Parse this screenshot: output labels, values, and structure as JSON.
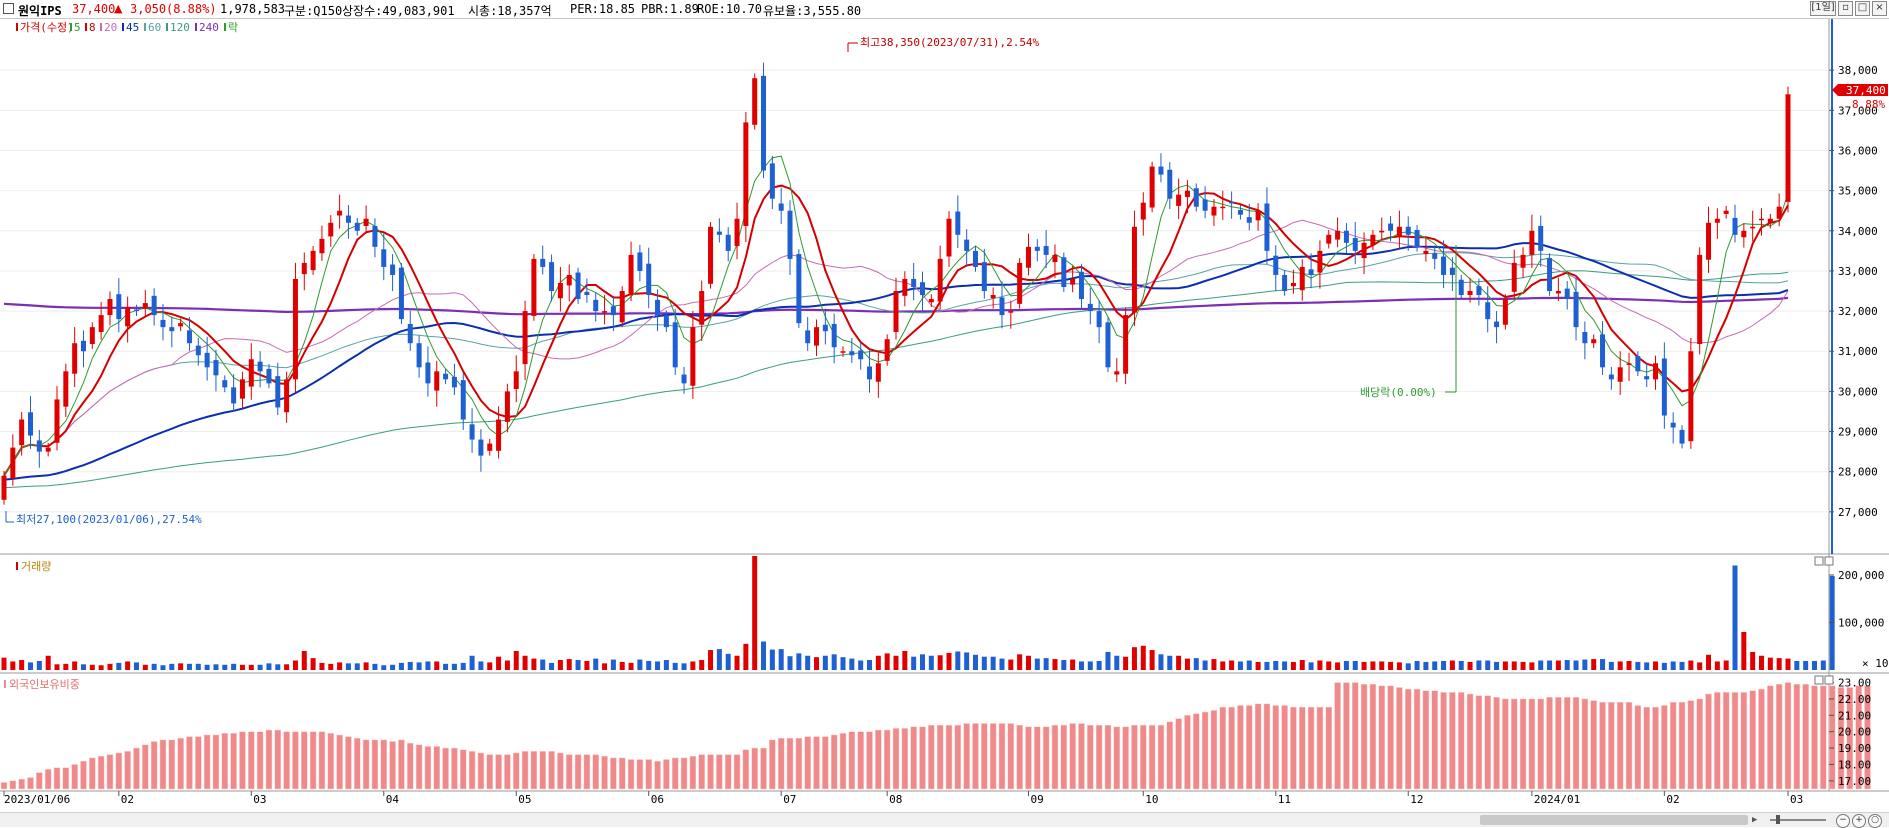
{
  "header": {
    "stock_name": "원익IPS",
    "price": "37,400",
    "change_arrow": "▲",
    "change": "3,050",
    "change_pct": "(8.88%)",
    "volume": "1,978,583",
    "market": "구분:Q150",
    "listed_shares": "상장수:49,083,901",
    "market_cap": "시총:18,357억",
    "per": "PER:18.85",
    "pbr": "PBR:1.89",
    "roe": "ROE:10.70",
    "retention": "유보율:3,555.80",
    "period": "[1일]"
  },
  "colors": {
    "up": "#e00000",
    "down": "#1e5fd1",
    "ma5": "#2e9b2e",
    "ma8": "#d40000",
    "ma20": "#c86bb5",
    "ma45": "#0b2fb0",
    "ma60": "#5aa2a4",
    "ma120": "#3a9d7f",
    "ma240": "#7b2fb5",
    "foreign": "#f08a8a"
  },
  "price_panel": {
    "legend": [
      {
        "label": "가격(수정)",
        "color": "#d40000"
      },
      {
        "label": "5",
        "color": "#2e9b2e"
      },
      {
        "label": "8",
        "color": "#d40000"
      },
      {
        "label": "20",
        "color": "#c86bb5"
      },
      {
        "label": "45",
        "color": "#0b2fb0"
      },
      {
        "label": "60",
        "color": "#5aa2a4"
      },
      {
        "label": "120",
        "color": "#3a9d7f"
      },
      {
        "label": "240",
        "color": "#7b2fb5"
      },
      {
        "label": "락",
        "color": "#2e9b2e"
      }
    ],
    "high_annotation": "최고38,350(2023/07/31),2.54%",
    "low_annotation": "최저27,100(2023/01/06),27.54%",
    "dividend_annotation": "배당락(0.00%)",
    "current_price_tag": "37,400",
    "current_pct_tag": "8.88%"
  },
  "volume_panel": {
    "legend": "거래량",
    "unit_label": "× 10"
  },
  "foreign_panel": {
    "legend": "외국인보유비중"
  },
  "chart_data": [
    {
      "type": "candlestick",
      "title": "원익IPS",
      "x": [
        "2023/01/06",
        "02",
        "03",
        "04",
        "05",
        "06",
        "07",
        "08",
        "09",
        "10",
        "11",
        "12",
        "2024/01",
        "02",
        "03"
      ],
      "y_ticks": [
        27000,
        28000,
        29000,
        30000,
        31000,
        32000,
        33000,
        34000,
        35000,
        36000,
        37000,
        38000
      ],
      "y_tick_labels": [
        "27,000",
        "28,000",
        "29,000",
        "30,000",
        "31,000",
        "32,000",
        "33,000",
        "34,000",
        "35,000",
        "36,000",
        "37,000",
        "38,000"
      ],
      "ylim": [
        26000,
        39200
      ],
      "closes": [
        27900,
        28600,
        29300,
        28900,
        28500,
        28600,
        29800,
        30500,
        31200,
        31000,
        31600,
        31900,
        32300,
        31800,
        32100,
        32000,
        32200,
        31900,
        31600,
        31500,
        31700,
        31200,
        30900,
        30600,
        30400,
        30100,
        29700,
        30300,
        30800,
        30500,
        30200,
        29600,
        30300,
        32800,
        33200,
        33500,
        33800,
        34200,
        34500,
        34200,
        34000,
        34300,
        33600,
        33100,
        32900,
        31800,
        31200,
        30600,
        30200,
        30500,
        30300,
        30100,
        29300,
        28800,
        28400,
        28700,
        29300,
        30000,
        30500,
        32000,
        33300,
        33100,
        32500,
        32700,
        32900,
        32300,
        32400,
        32000,
        32000,
        31900,
        32500,
        33400,
        33000,
        32400,
        31900,
        31600,
        30600,
        30200,
        31600,
        32500,
        34100,
        33900,
        33500,
        34300,
        36700,
        37800,
        35500,
        34800,
        34500,
        33300,
        31700,
        31200,
        31600,
        31500,
        31100,
        31000,
        30900,
        30800,
        30300,
        30700,
        31300,
        32500,
        32800,
        32600,
        32400,
        32300,
        33300,
        34300,
        33900,
        33500,
        33100,
        32500,
        32400,
        31900,
        32000,
        33200,
        33600,
        33500,
        33400,
        33400,
        32600,
        32800,
        32300,
        32000,
        31600,
        30600,
        30500,
        31900,
        34100,
        34700,
        35600,
        35400,
        34800,
        34900,
        35000,
        34600,
        34500,
        34600,
        34600,
        34700,
        34400,
        34200,
        34500,
        33500,
        32900,
        32500,
        32700,
        33100,
        32900,
        33500,
        33900,
        34000,
        33700,
        33500,
        33700,
        33900,
        34000,
        34000,
        34100,
        33900,
        33600,
        33500,
        33300,
        32900,
        32900,
        32400,
        32500,
        32400,
        31800,
        31600,
        32300,
        33200,
        33400,
        34000,
        33500,
        32500,
        32500,
        32300,
        31600,
        31200,
        31300,
        30600,
        30300,
        30600,
        30700,
        30500,
        30300,
        30700,
        29400,
        29100,
        28700,
        31000,
        33400,
        34200,
        34300,
        34500,
        33900,
        34000,
        34100,
        34300,
        34300,
        34600,
        37400
      ],
      "series": [
        {
          "name": "5"
        },
        {
          "name": "8"
        },
        {
          "name": "20"
        },
        {
          "name": "45"
        },
        {
          "name": "60"
        },
        {
          "name": "120"
        },
        {
          "name": "240"
        }
      ]
    },
    {
      "type": "bar",
      "title": "거래량",
      "y_ticks": [
        100000,
        200000
      ],
      "y_tick_labels": [
        "100,000",
        "200,000"
      ],
      "ylim": [
        0,
        240000
      ],
      "volumes": [
        26000,
        18000,
        21000,
        16000,
        19000,
        30000,
        12000,
        13000,
        18000,
        12000,
        11000,
        10000,
        13000,
        15000,
        18000,
        16000,
        11000,
        13000,
        10000,
        13000,
        14000,
        13000,
        13000,
        11000,
        12000,
        11000,
        13000,
        11000,
        11000,
        11000,
        14000,
        12000,
        12000,
        20000,
        40000,
        25000,
        15000,
        13000,
        16000,
        14000,
        14000,
        16000,
        13000,
        10000,
        11000,
        15000,
        17000,
        16000,
        18000,
        18000,
        13000,
        13000,
        15000,
        30000,
        18000,
        16000,
        28000,
        20000,
        40000,
        30000,
        24000,
        22000,
        15000,
        21000,
        23000,
        21000,
        19000,
        24000,
        14000,
        22000,
        17000,
        15000,
        22000,
        19000,
        18000,
        21000,
        15000,
        14000,
        18000,
        21000,
        42000,
        44000,
        34000,
        30000,
        55000,
        240000,
        60000,
        43000,
        44000,
        29000,
        35000,
        30000,
        27000,
        30000,
        33000,
        27000,
        24000,
        20000,
        21000,
        30000,
        35000,
        30000,
        40000,
        28000,
        33000,
        30000,
        31000,
        36000,
        39000,
        37000,
        32000,
        28000,
        28000,
        24000,
        22000,
        33000,
        30000,
        24000,
        25000,
        23000,
        21000,
        22000,
        18000,
        18000,
        19000,
        38000,
        30000,
        28000,
        48000,
        51000,
        42000,
        33000,
        30000,
        30000,
        24000,
        25000,
        20000,
        23000,
        18000,
        20000,
        18000,
        20000,
        17000,
        17000,
        19000,
        18000,
        17000,
        21000,
        16000,
        20000,
        18000,
        16000,
        19000,
        19000,
        17000,
        18000,
        18000,
        17000,
        16000,
        14000,
        19000,
        17000,
        18000,
        19000,
        20000,
        19000,
        17000,
        20000,
        20000,
        17000,
        18000,
        18000,
        17000,
        16000,
        20000,
        20000,
        20000,
        21000,
        20000,
        22000,
        23000,
        23000,
        17000,
        18000,
        19000,
        17000,
        16000,
        18000,
        15000,
        18000,
        17000,
        20000,
        16000,
        32000,
        18000,
        20000,
        220000,
        80000,
        38000,
        30000,
        26000,
        25000,
        24000,
        19000,
        19000,
        19000,
        20000,
        198000
      ]
    },
    {
      "type": "bar",
      "title": "외국인보유비중",
      "y_ticks": [
        17,
        18,
        19,
        20,
        21,
        22,
        23
      ],
      "y_tick_labels": [
        "17.00",
        "18.00",
        "19.00",
        "20.00",
        "21.00",
        "22.00",
        "23.00"
      ],
      "ylim": [
        16.5,
        23.4
      ],
      "values": [
        16.9,
        17.0,
        17.1,
        17.2,
        17.5,
        17.7,
        17.8,
        17.8,
        18.0,
        18.2,
        18.4,
        18.5,
        18.6,
        18.7,
        18.8,
        19.0,
        19.2,
        19.4,
        19.5,
        19.5,
        19.6,
        19.7,
        19.7,
        19.8,
        19.8,
        19.9,
        19.9,
        20.0,
        20.0,
        20.0,
        20.1,
        20.1,
        20.0,
        20.0,
        20.0,
        20.0,
        20.0,
        19.9,
        19.8,
        19.7,
        19.6,
        19.5,
        19.5,
        19.5,
        19.4,
        19.5,
        19.3,
        19.2,
        19.1,
        19.1,
        19.0,
        19.0,
        18.9,
        18.8,
        18.7,
        18.6,
        18.6,
        18.6,
        18.7,
        18.8,
        18.8,
        18.8,
        18.8,
        18.7,
        18.6,
        18.6,
        18.6,
        18.6,
        18.5,
        18.4,
        18.4,
        18.3,
        18.3,
        18.3,
        18.2,
        18.3,
        18.4,
        18.4,
        18.5,
        18.6,
        18.6,
        18.6,
        18.6,
        18.6,
        18.9,
        19.0,
        19.0,
        19.5,
        19.6,
        19.6,
        19.6,
        19.7,
        19.7,
        19.7,
        19.8,
        19.9,
        20.0,
        20.0,
        20.0,
        20.1,
        20.1,
        20.2,
        20.2,
        20.3,
        20.3,
        20.4,
        20.4,
        20.4,
        20.4,
        20.5,
        20.5,
        20.5,
        20.5,
        20.5,
        20.5,
        20.4,
        20.3,
        20.3,
        20.3,
        20.4,
        20.4,
        20.5,
        20.5,
        20.4,
        20.4,
        20.4,
        20.3,
        20.3,
        20.4,
        20.4,
        20.4,
        20.4,
        20.6,
        20.8,
        21.0,
        21.1,
        21.2,
        21.3,
        21.5,
        21.5,
        21.6,
        21.6,
        21.7,
        21.7,
        21.6,
        21.6,
        21.5,
        21.5,
        21.5,
        21.5,
        21.5,
        23.0,
        23.0,
        23.0,
        22.9,
        22.9,
        22.8,
        22.8,
        22.7,
        22.6,
        22.6,
        22.5,
        22.5,
        22.4,
        22.4,
        22.4,
        22.3,
        22.2,
        22.2,
        22.1,
        22.0,
        22.0,
        22.0,
        22.0,
        22.0,
        22.1,
        22.1,
        22.1,
        22.1,
        22.0,
        21.9,
        21.8,
        21.8,
        21.8,
        21.8,
        21.6,
        21.5,
        21.5,
        21.6,
        21.8,
        21.8,
        21.9,
        22.0,
        22.3,
        22.4,
        22.4,
        22.4,
        22.4,
        22.5,
        22.6,
        22.8,
        22.9,
        23.0,
        22.9,
        22.9,
        22.8,
        22.8,
        22.8,
        22.7,
        22.7,
        22.8,
        22.8
      ]
    }
  ]
}
